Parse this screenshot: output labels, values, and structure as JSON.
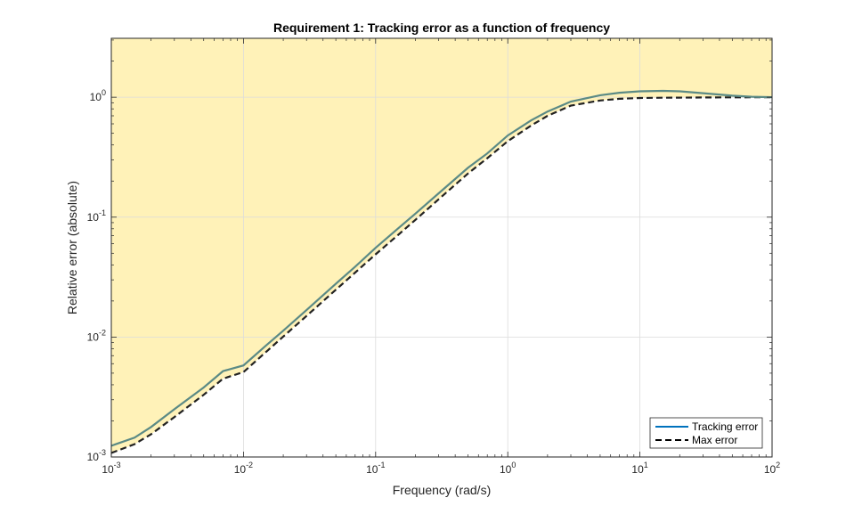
{
  "chart_data": {
    "type": "line",
    "title": "Requirement 1: Tracking error as a function of frequency",
    "xlabel": "Frequency (rad/s)",
    "ylabel": "Relative error (absolute)",
    "xscale": "log",
    "yscale": "log",
    "xlim": [
      0.001,
      100
    ],
    "ylim": [
      0.001,
      3.1
    ],
    "grid": true,
    "x_ticks": [
      {
        "value": 0.001,
        "base": "10",
        "exp": "-3"
      },
      {
        "value": 0.01,
        "base": "10",
        "exp": "-2"
      },
      {
        "value": 0.1,
        "base": "10",
        "exp": "-1"
      },
      {
        "value": 1,
        "base": "10",
        "exp": "0"
      },
      {
        "value": 10,
        "base": "10",
        "exp": "1"
      },
      {
        "value": 100,
        "base": "10",
        "exp": "2"
      }
    ],
    "y_ticks": [
      {
        "value": 0.001,
        "base": "10",
        "exp": "-3"
      },
      {
        "value": 0.01,
        "base": "10",
        "exp": "-2"
      },
      {
        "value": 0.1,
        "base": "10",
        "exp": "-1"
      },
      {
        "value": 1,
        "base": "10",
        "exp": "0"
      }
    ],
    "shaded_region": {
      "description": "exclusion region above max error bound",
      "color": "#fff2b8"
    },
    "legend_position": "bottom-right",
    "series": [
      {
        "name": "Tracking error",
        "style": "solid",
        "color": "#5b8a85",
        "legend_color": "#0072bd",
        "x": [
          0.001,
          0.0015,
          0.002,
          0.003,
          0.005,
          0.007,
          0.01,
          0.015,
          0.02,
          0.03,
          0.05,
          0.07,
          0.1,
          0.15,
          0.2,
          0.3,
          0.5,
          0.7,
          1,
          1.5,
          2,
          3,
          5,
          7,
          10,
          15,
          20,
          30,
          50,
          70,
          100
        ],
        "y": [
          0.00124,
          0.00145,
          0.00178,
          0.0025,
          0.0038,
          0.0052,
          0.0058,
          0.0086,
          0.0113,
          0.0168,
          0.0278,
          0.0386,
          0.0555,
          0.0815,
          0.107,
          0.158,
          0.258,
          0.34,
          0.48,
          0.64,
          0.76,
          0.92,
          1.04,
          1.09,
          1.12,
          1.13,
          1.12,
          1.08,
          1.03,
          1.01,
          1.0
        ]
      },
      {
        "name": "Max error",
        "style": "dashed",
        "color": "#222222",
        "x": [
          0.001,
          0.0015,
          0.002,
          0.003,
          0.005,
          0.007,
          0.01,
          0.015,
          0.02,
          0.03,
          0.05,
          0.07,
          0.1,
          0.15,
          0.2,
          0.3,
          0.5,
          0.7,
          1,
          1.5,
          2,
          3,
          5,
          7,
          10,
          15,
          20,
          30,
          50,
          70,
          100
        ],
        "y": [
          0.00108,
          0.00128,
          0.00155,
          0.00215,
          0.0033,
          0.0045,
          0.0051,
          0.0076,
          0.0101,
          0.015,
          0.0248,
          0.0345,
          0.049,
          0.072,
          0.095,
          0.141,
          0.231,
          0.31,
          0.43,
          0.58,
          0.7,
          0.85,
          0.94,
          0.97,
          0.985,
          0.99,
          0.993,
          0.996,
          0.998,
          0.999,
          1.0
        ]
      }
    ]
  }
}
